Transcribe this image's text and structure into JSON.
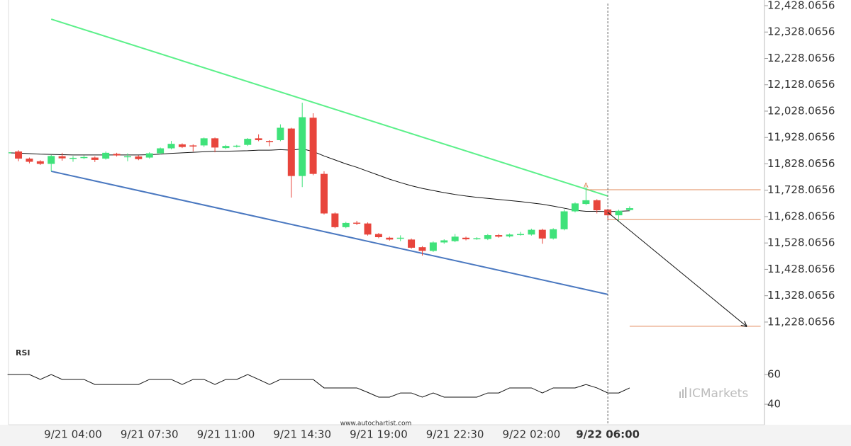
{
  "chart_data": [
    {
      "type": "candlestick",
      "categories": [
        null,
        null,
        null,
        null,
        null,
        null,
        "9/21 04:00",
        null,
        null,
        null,
        null,
        null,
        null,
        "9/21 07:30",
        null,
        null,
        null,
        null,
        null,
        null,
        "9/21 11:00",
        null,
        null,
        null,
        null,
        null,
        null,
        "9/21 14:30",
        null,
        null,
        null,
        null,
        null,
        null,
        "9/21 19:00",
        null,
        null,
        null,
        null,
        null,
        null,
        "9/21 22:30",
        null,
        null,
        null,
        null,
        null,
        null,
        "9/22 02:00",
        null,
        null,
        null,
        null,
        null,
        null,
        "9/22 06:00",
        null,
        null
      ],
      "candles": {
        "open": [
          11870,
          11875,
          11848,
          11838,
          11828,
          11857,
          11849,
          11852,
          11852,
          11848,
          11866,
          11855,
          11856,
          11852,
          11868,
          11887,
          11902,
          11898,
          11898,
          11925,
          11888,
          11894,
          11900,
          11925,
          11915,
          11918,
          11962,
          11782,
          12003,
          11790,
          11640,
          11588,
          11605,
          11602,
          11562,
          11548,
          11546,
          11541,
          11512,
          11498,
          11530,
          11535,
          11548,
          11544,
          11543,
          11558,
          11553,
          11560,
          11560,
          11578,
          11545,
          11580,
          11648,
          11676,
          11690,
          11655,
          11633,
          11653
        ],
        "high": [
          11878,
          11880,
          11852,
          11842,
          11862,
          11870,
          11858,
          11860,
          11856,
          11875,
          11870,
          11868,
          11860,
          11872,
          11890,
          11915,
          11906,
          11902,
          11928,
          11928,
          11900,
          11900,
          11926,
          11940,
          11918,
          11978,
          11965,
          12060,
          12020,
          11800,
          11644,
          11608,
          11612,
          11606,
          11566,
          11552,
          11557,
          11545,
          11516,
          11534,
          11542,
          11562,
          11552,
          11550,
          11562,
          11562,
          11564,
          11570,
          11582,
          11582,
          11584,
          11655,
          11682,
          11740,
          11694,
          11658,
          11654,
          11667
        ],
        "low": [
          11864,
          11838,
          11830,
          11824,
          11800,
          11840,
          11836,
          11846,
          11835,
          11844,
          11856,
          11838,
          11842,
          11848,
          11864,
          11883,
          11888,
          11875,
          11892,
          11872,
          11884,
          11890,
          11896,
          11914,
          11895,
          11914,
          11700,
          11740,
          11785,
          11636,
          11584,
          11584,
          11596,
          11556,
          11546,
          11537,
          11535,
          11506,
          11480,
          11494,
          11525,
          11531,
          11538,
          11540,
          11539,
          11548,
          11549,
          11556,
          11556,
          11525,
          11541,
          11576,
          11644,
          11672,
          11640,
          11615,
          11612,
          11649
        ],
        "close": [
          11872,
          11848,
          11836,
          11828,
          11858,
          11849,
          11851,
          11854,
          11843,
          11870,
          11860,
          11857,
          11846,
          11868,
          11887,
          11904,
          11892,
          11895,
          11925,
          11890,
          11896,
          11897,
          11923,
          11918,
          11912,
          11965,
          11782,
          12005,
          11790,
          11640,
          11588,
          11604,
          11603,
          11560,
          11550,
          11541,
          11548,
          11510,
          11498,
          11530,
          11538,
          11552,
          11542,
          11546,
          11558,
          11552,
          11560,
          11562,
          11578,
          11545,
          11580,
          11648,
          11678,
          11690,
          11652,
          11633,
          11650,
          11660
        ]
      },
      "up_color": "#3fe27a",
      "down_color": "#e8453c",
      "ma": {
        "color": "#111111",
        "values": [
          11870,
          11869,
          11867,
          11865,
          11864,
          11863,
          11862,
          11862,
          11862,
          11862,
          11862,
          11862,
          11862,
          11863,
          11865,
          11868,
          11870,
          11872,
          11874,
          11876,
          11876,
          11877,
          11878,
          11880,
          11880,
          11882,
          11880,
          11885,
          11875,
          11858,
          11843,
          11828,
          11815,
          11800,
          11785,
          11770,
          11757,
          11745,
          11735,
          11727,
          11719,
          11712,
          11706,
          11701,
          11697,
          11693,
          11689,
          11685,
          11680,
          11675,
          11668,
          11660,
          11652,
          11648,
          11648,
          11647,
          11648,
          11650
        ]
      },
      "channels": [
        {
          "color": "#5cf08a",
          "x": [
            4,
            55
          ],
          "values": [
            12377,
            11706
          ]
        },
        {
          "color": "#4a78c0",
          "x": [
            4,
            55
          ],
          "values": [
            11800,
            11333
          ]
        }
      ],
      "levels": [
        {
          "color": "#e0895a",
          "value": 11730,
          "x": [
            53,
            69
          ]
        },
        {
          "color": "#e0895a",
          "value": 11617,
          "x": [
            55,
            69
          ]
        },
        {
          "color": "#e0895a",
          "value": 11212,
          "x": [
            57,
            69
          ]
        }
      ],
      "annotation": {
        "text": "A",
        "x": 53,
        "value": 11746,
        "color": "#e0895a"
      },
      "forecast": {
        "color": "#111111",
        "x": [
          55,
          67.7
        ],
        "values": [
          11644,
          11212
        ]
      },
      "marker_line": {
        "x": 55
      },
      "ylim": [
        11133.9,
        12449.55
      ],
      "yticks": [
        {
          "value": 12428.0656,
          "label": "12,428.0656"
        },
        {
          "value": 12328.0656,
          "label": "12,328.0656"
        },
        {
          "value": 12228.0656,
          "label": "12,228.0656"
        },
        {
          "value": 12128.0656,
          "label": "12,128.0656"
        },
        {
          "value": 12028.0656,
          "label": "12,028.0656"
        },
        {
          "value": 11928.0656,
          "label": "11,928.0656"
        },
        {
          "value": 11828.0656,
          "label": "11,828.0656"
        },
        {
          "value": 11728.0656,
          "label": "11,728.0656"
        },
        {
          "value": 11628.0656,
          "label": "11,628.0656"
        },
        {
          "value": 11528.0656,
          "label": "11,528.0656"
        },
        {
          "value": 11428.0656,
          "label": "11,428.0656"
        },
        {
          "value": 11328.0656,
          "label": "11,328.0656"
        },
        {
          "value": 11228.0656,
          "label": "11,228.0656"
        }
      ]
    },
    {
      "type": "line",
      "title": "RSI",
      "color": "#111111",
      "values": [
        60,
        60,
        60,
        56.7,
        60,
        56.7,
        56.7,
        56.7,
        53.3,
        53.3,
        53.3,
        53.3,
        53.3,
        56.7,
        56.7,
        56.7,
        53.3,
        56.7,
        56.7,
        53.3,
        56.7,
        56.7,
        60,
        56.7,
        53.3,
        56.7,
        56.7,
        56.7,
        56.7,
        51,
        51,
        51,
        51,
        48,
        44.8,
        44.8,
        47.6,
        47.6,
        44.8,
        47.6,
        44.8,
        44.8,
        44.8,
        44.8,
        47.6,
        47.6,
        51,
        51,
        51,
        47.6,
        51,
        51,
        51,
        53.3,
        51,
        47.6,
        47.6,
        51
      ],
      "ylim": [
        26.2,
        78.6
      ],
      "yticks": [
        40,
        60
      ]
    }
  ],
  "footer": {
    "source": "www.autochartist.com",
    "brand": "ICMarkets"
  }
}
